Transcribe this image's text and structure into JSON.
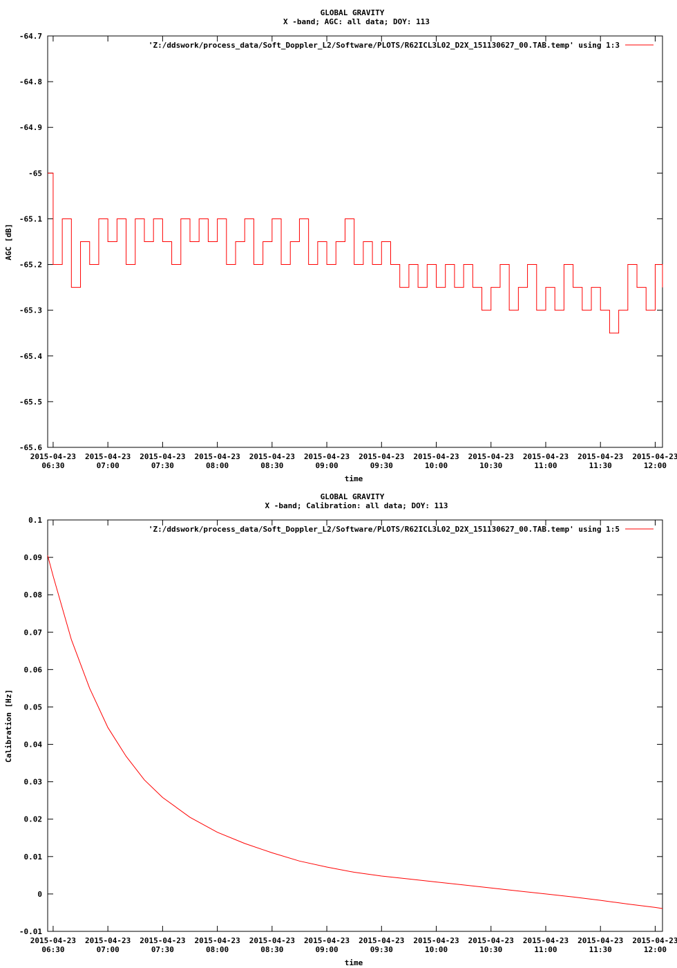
{
  "chart_data": [
    {
      "type": "line",
      "title": "GLOBAL GRAVITY",
      "subtitle": "X -band; AGC: all data; DOY: 113",
      "xlabel": "time",
      "ylabel": "AGC [dB]",
      "ylim": [
        -65.6,
        -64.7
      ],
      "y_ticks": [
        "-64.7",
        "-64.8",
        "-64.9",
        "-65",
        "-65.1",
        "-65.2",
        "-65.3",
        "-65.4",
        "-65.5",
        "-65.6"
      ],
      "x_tick_dates": [
        "2015-04-23",
        "2015-04-23",
        "2015-04-23",
        "2015-04-23",
        "2015-04-23",
        "2015-04-23",
        "2015-04-23",
        "2015-04-23",
        "2015-04-23",
        "2015-04-23",
        "2015-04-23",
        "2015-04-23"
      ],
      "x_tick_times": [
        "06:30",
        "07:00",
        "07:30",
        "08:00",
        "08:30",
        "09:00",
        "09:30",
        "10:00",
        "10:30",
        "11:00",
        "11:30",
        "12:00"
      ],
      "xlim": [
        "2015-04-23 06:27",
        "2015-04-23 12:04"
      ],
      "legend": "'Z:/ddswork/process_data/Soft_Doppler_L2/Software/PLOTS/R62ICL3L02_D2X_151130627_00.TAB.temp' using 1:3",
      "legend_position": "top-right",
      "series_color": "#ff0000",
      "series": [
        {
          "x": [
            "06:27",
            "06:30",
            "06:35",
            "06:40",
            "06:45",
            "06:50",
            "06:55",
            "07:00",
            "07:05",
            "07:10",
            "07:15",
            "07:20",
            "07:25",
            "07:30",
            "07:35",
            "07:40",
            "07:45",
            "07:50",
            "07:55",
            "08:00",
            "08:05",
            "08:10",
            "08:15",
            "08:20",
            "08:25",
            "08:30",
            "08:35",
            "08:40",
            "08:45",
            "08:50",
            "08:55",
            "09:00",
            "09:05",
            "09:10",
            "09:15",
            "09:20",
            "09:25",
            "09:30",
            "09:35",
            "09:40",
            "09:45",
            "09:50",
            "09:55",
            "10:00",
            "10:05",
            "10:10",
            "10:15",
            "10:20",
            "10:25",
            "10:30",
            "10:35",
            "10:40",
            "10:45",
            "10:50",
            "10:55",
            "11:00",
            "11:05",
            "11:10",
            "11:15",
            "11:20",
            "11:25",
            "11:30",
            "11:35",
            "11:40",
            "11:45",
            "11:50",
            "11:55",
            "12:00",
            "12:04"
          ],
          "values": [
            -65.0,
            -65.2,
            -65.1,
            -65.25,
            -65.15,
            -65.2,
            -65.1,
            -65.15,
            -65.1,
            -65.2,
            -65.1,
            -65.15,
            -65.1,
            -65.15,
            -65.2,
            -65.1,
            -65.15,
            -65.1,
            -65.15,
            -65.1,
            -65.2,
            -65.15,
            -65.1,
            -65.2,
            -65.15,
            -65.1,
            -65.2,
            -65.15,
            -65.1,
            -65.2,
            -65.15,
            -65.2,
            -65.15,
            -65.1,
            -65.2,
            -65.15,
            -65.2,
            -65.15,
            -65.2,
            -65.25,
            -65.2,
            -65.25,
            -65.2,
            -65.25,
            -65.2,
            -65.25,
            -65.2,
            -65.25,
            -65.3,
            -65.25,
            -65.2,
            -65.3,
            -65.25,
            -65.2,
            -65.3,
            -65.25,
            -65.3,
            -65.2,
            -65.25,
            -65.3,
            -65.25,
            -65.3,
            -65.35,
            -65.3,
            -65.2,
            -65.25,
            -65.3,
            -65.2,
            -65.25
          ]
        }
      ]
    },
    {
      "type": "line",
      "title": "GLOBAL GRAVITY",
      "subtitle": "X -band; Calibration: all data; DOY: 113",
      "xlabel": "time",
      "ylabel": "Calibration [Hz]",
      "ylim": [
        -0.01,
        0.1
      ],
      "y_ticks": [
        "0.1",
        "0.09",
        "0.08",
        "0.07",
        "0.06",
        "0.05",
        "0.04",
        "0.03",
        "0.02",
        "0.01",
        "0",
        "-0.01"
      ],
      "x_tick_dates": [
        "2015-04-23",
        "2015-04-23",
        "2015-04-23",
        "2015-04-23",
        "2015-04-23",
        "2015-04-23",
        "2015-04-23",
        "2015-04-23",
        "2015-04-23",
        "2015-04-23",
        "2015-04-23",
        "2015-04-23"
      ],
      "x_tick_times": [
        "06:30",
        "07:00",
        "07:30",
        "08:00",
        "08:30",
        "09:00",
        "09:30",
        "10:00",
        "10:30",
        "11:00",
        "11:30",
        "12:00"
      ],
      "xlim": [
        "2015-04-23 06:27",
        "2015-04-23 12:04"
      ],
      "legend": "'Z:/ddswork/process_data/Soft_Doppler_L2/Software/PLOTS/R62ICL3L02_D2X_151130627_00.TAB.temp' using 1:5",
      "legend_position": "top-right",
      "series_color": "#ff0000",
      "series": [
        {
          "x": [
            "06:27",
            "06:30",
            "06:40",
            "06:50",
            "07:00",
            "07:10",
            "07:20",
            "07:30",
            "07:45",
            "08:00",
            "08:15",
            "08:30",
            "08:45",
            "09:00",
            "09:15",
            "09:30",
            "09:45",
            "10:00",
            "10:15",
            "10:30",
            "10:45",
            "11:00",
            "11:15",
            "11:30",
            "11:45",
            "12:00",
            "12:04"
          ],
          "values": [
            0.0905,
            0.085,
            0.068,
            0.055,
            0.0445,
            0.0368,
            0.0305,
            0.0258,
            0.0205,
            0.0165,
            0.0135,
            0.011,
            0.0088,
            0.0072,
            0.0058,
            0.0048,
            0.004,
            0.0032,
            0.0024,
            0.0016,
            0.0008,
            0.0,
            -0.0008,
            -0.0017,
            -0.0027,
            -0.0036,
            -0.0039
          ]
        }
      ]
    }
  ]
}
